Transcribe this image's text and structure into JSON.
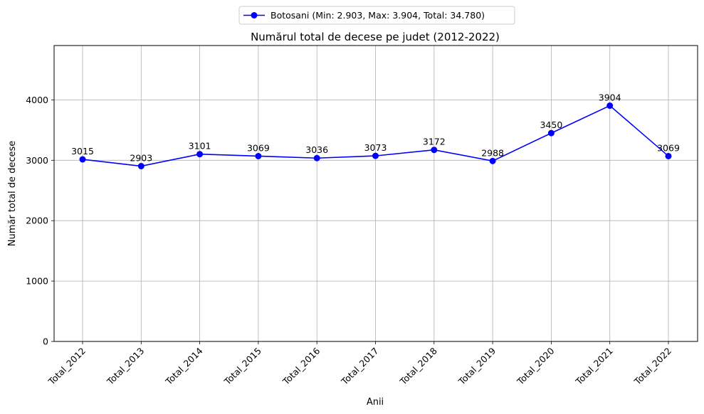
{
  "chart_data": {
    "type": "line",
    "title": "Numărul total de decese pe judet (2012-2022)",
    "xlabel": "Anii",
    "ylabel": "Număr total de decese",
    "categories": [
      "Total_2012",
      "Total_2013",
      "Total_2014",
      "Total_2015",
      "Total_2016",
      "Total_2017",
      "Total_2018",
      "Total_2019",
      "Total_2020",
      "Total_2021",
      "Total_2022"
    ],
    "series": [
      {
        "name": "Botosani (Min: 2.903, Max: 3.904, Total: 34.780)",
        "values": [
          3015,
          2903,
          3101,
          3069,
          3036,
          3073,
          3172,
          2988,
          3450,
          3904,
          3069
        ],
        "color": "#0000ff",
        "marker": "circle"
      }
    ],
    "data_labels": [
      "3015",
      "2903",
      "3101",
      "3069",
      "3036",
      "3073",
      "3172",
      "2988",
      "3450",
      "3904",
      "3069"
    ],
    "ylim": [
      0,
      4900
    ],
    "yticks": [
      0,
      1000,
      2000,
      3000,
      4000
    ],
    "ytick_labels": [
      "0",
      "1000",
      "2000",
      "3000",
      "4000"
    ],
    "grid": true,
    "legend_position": "top-center"
  }
}
